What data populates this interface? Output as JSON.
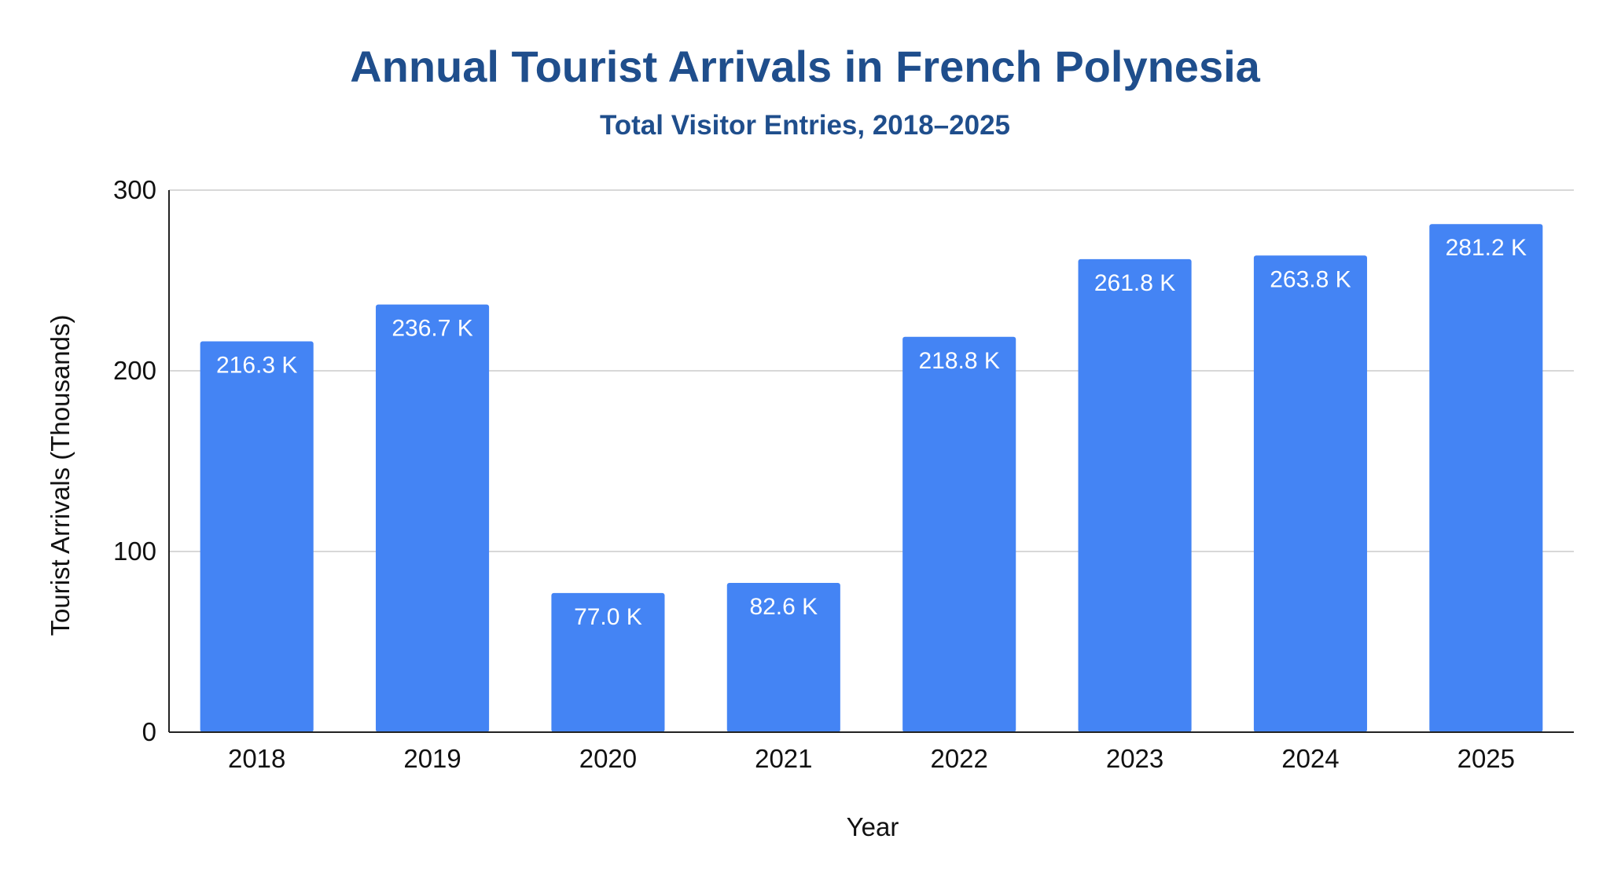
{
  "chart_data": {
    "type": "bar",
    "title": "Annual Tourist Arrivals in French Polynesia",
    "subtitle": "Total Visitor Entries, 2018–2025",
    "xlabel": "Year",
    "ylabel": "Tourist Arrivals (Thousands)",
    "categories": [
      "2018",
      "2019",
      "2020",
      "2021",
      "2022",
      "2023",
      "2024",
      "2025"
    ],
    "values": [
      216.3,
      236.7,
      77.0,
      82.6,
      218.8,
      261.8,
      263.8,
      281.2
    ],
    "data_labels": [
      "216.3 K",
      "236.7 K",
      "77.0 K",
      "82.6 K",
      "218.8 K",
      "261.8 K",
      "263.8 K",
      "281.2 K"
    ],
    "ylim": [
      0,
      300
    ],
    "yticks": [
      "0",
      "100",
      "200",
      "300"
    ],
    "grid": true,
    "legend": "none"
  },
  "colors": {
    "bar": "#4484F4",
    "title": "#1F4E8C",
    "grid": "#CCCCCC",
    "axis": "#222222"
  }
}
